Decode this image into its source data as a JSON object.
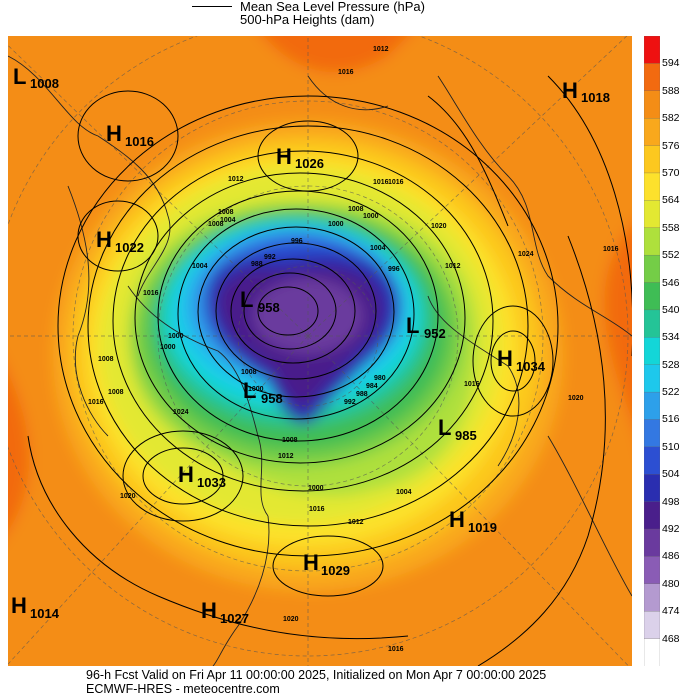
{
  "legend": {
    "line_label": "Mean Sea Level Pressure (hPa)",
    "fill_label": "500-hPa Heights (dam)"
  },
  "colorbar": {
    "levels": [
      "594",
      "588",
      "582",
      "576",
      "570",
      "564",
      "558",
      "552",
      "546",
      "540",
      "534",
      "528",
      "522",
      "516",
      "510",
      "504",
      "498",
      "492",
      "486",
      "480",
      "474",
      "468"
    ],
    "colors": [
      "#ee1111",
      "#f26a10",
      "#f48d16",
      "#f9a81c",
      "#fcc81f",
      "#fde12c",
      "#e3e832",
      "#aee03c",
      "#74cd47",
      "#3fbd55",
      "#24c497",
      "#13d6d8",
      "#1ec8ec",
      "#2da0ea",
      "#3378e2",
      "#2c4fd2",
      "#2a2eb0",
      "#4a1f8b",
      "#6a3a9e",
      "#8a5cb5",
      "#b49ad0",
      "#dbd1ea"
    ],
    "extra_colors": [
      "#ffffff"
    ]
  },
  "pressure_centers": [
    {
      "type": "L",
      "value": "1008"
    },
    {
      "type": "H",
      "value": "1016"
    },
    {
      "type": "H",
      "value": "1026"
    },
    {
      "type": "H",
      "value": "1018"
    },
    {
      "type": "H",
      "value": "1022"
    },
    {
      "type": "L",
      "value": "958"
    },
    {
      "type": "L",
      "value": "952"
    },
    {
      "type": "H",
      "value": "1034"
    },
    {
      "type": "L",
      "value": "958"
    },
    {
      "type": "L",
      "value": "985"
    },
    {
      "type": "H",
      "value": "1033"
    },
    {
      "type": "H",
      "value": "1019"
    },
    {
      "type": "H",
      "value": "1029"
    },
    {
      "type": "H",
      "value": "1014"
    },
    {
      "type": "H",
      "value": "1027"
    }
  ],
  "isobar_labels": [
    "1012",
    "1016",
    "1016",
    "1012",
    "1008",
    "1004",
    "1000",
    "996",
    "992",
    "988",
    "1000",
    "1004",
    "1008",
    "1016",
    "1024",
    "1020",
    "1020",
    "1012",
    "1016",
    "1016",
    "1012",
    "1008",
    "1000",
    "1004",
    "1008",
    "1016",
    "1024",
    "1020",
    "1004",
    "1008",
    "996",
    "1000",
    "1000",
    "1008",
    "1016",
    "1012",
    "1008",
    "1000",
    "992",
    "988",
    "984",
    "980",
    "1016",
    "1020",
    "1016"
  ],
  "footer": {
    "line1": "96-h Fcst Valid on Fri Apr 11 00:00:00 2025, Initialized on Mon Apr  7 00:00:00 2025",
    "line2": "ECMWF-HRES  - meteocentre.com"
  }
}
